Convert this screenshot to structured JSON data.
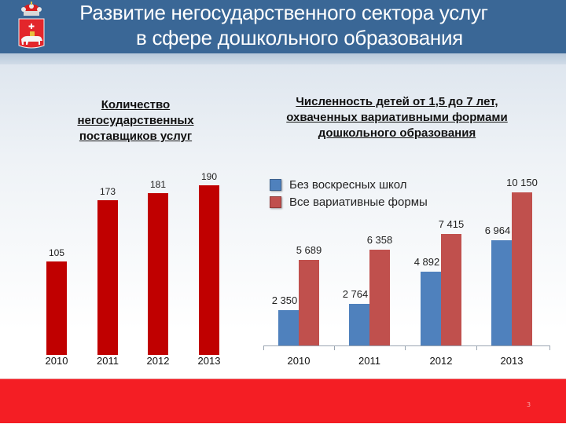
{
  "header": {
    "title_line1": "Развитие негосударственного сектора услуг",
    "title_line2": "в сфере дошкольного образования",
    "emblem": "perm-krai-coat-of-arms-icon"
  },
  "colors": {
    "header_bg": "#3a6796",
    "footer_bg": "#f41e24",
    "left_bar": "#c00000",
    "series_blue": "#4f81bd",
    "series_red": "#c0504d"
  },
  "chart_data": [
    {
      "type": "bar",
      "title": "Количество негосударственных поставщиков услуг",
      "title_lines": [
        "Количество",
        "негосударственных",
        "поставщиков услуг"
      ],
      "categories": [
        "2010",
        "2011",
        "2012",
        "2013"
      ],
      "values": [
        105,
        173,
        181,
        190
      ],
      "value_labels": [
        "105",
        "173",
        "181",
        "190"
      ],
      "xlabel": "",
      "ylabel": "",
      "grid": false,
      "legend": false
    },
    {
      "type": "bar",
      "title": "Численность детей от 1,5 до 7 лет, охваченных вариативными формами дошкольного образования",
      "title_lines": [
        "Численность детей от 1,5 до 7 лет,",
        "охваченных вариативными формами",
        "дошкольного образования"
      ],
      "categories": [
        "2010",
        "2011",
        "2012",
        "2013"
      ],
      "series": [
        {
          "name": "Без воскресных школ",
          "values": [
            2350,
            2764,
            4892,
            6964
          ],
          "value_labels": [
            "2 350",
            "2 764",
            "4 892",
            "6 964"
          ]
        },
        {
          "name": "Все вариативные формы",
          "values": [
            5689,
            6358,
            7415,
            10150
          ],
          "value_labels": [
            "5 689",
            "6 358",
            "7 415",
            "10 150"
          ]
        }
      ],
      "xlabel": "",
      "ylabel": "",
      "grid": false,
      "legend_position": "top-left"
    }
  ],
  "footer": {
    "page_number": "3"
  }
}
